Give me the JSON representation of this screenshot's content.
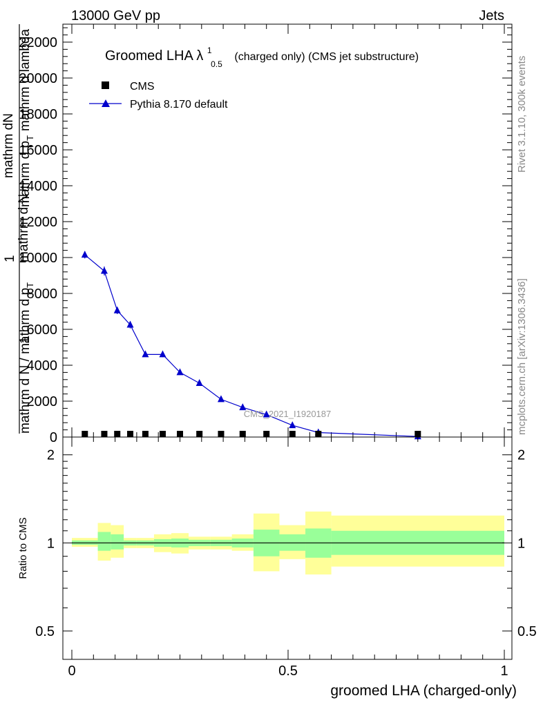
{
  "header": {
    "left": "13000 GeV pp",
    "right": "Jets"
  },
  "side_text": {
    "rivet": "Rivet 3.1.10,  300k events",
    "mcplots": "mcplots.cern.ch [arXiv:1306.3436]"
  },
  "chart_data": [
    {
      "type": "line",
      "panel": "main",
      "title_main": "Groomed LHA ",
      "title_lambda": "λ",
      "title_sup": "1",
      "title_sub": "0.5",
      "title_rest": "(charged only) (CMS jet substructure)",
      "ylabel_top": "mathrm dN",
      "ylabel_top2": "mathrm d p",
      "ylabel_top3": "T",
      "ylabel_top4": "mathrm d lambda",
      "ylabel_bottom_one": "1",
      "ylabel_bottom": "mathrm d N / mathrm d p",
      "ylabel_bottom2": "T",
      "ylabel_left": "mathrm d N",
      "ylabel_left_one": "1",
      "watermark": "CMS_2021_I1920187",
      "ylim": [
        0,
        23000
      ],
      "xlim": [
        -0.025,
        1.0
      ],
      "y_ticks": [
        {
          "value": 0,
          "label": "0"
        },
        {
          "value": 2000,
          "label": "2000"
        },
        {
          "value": 4000,
          "label": "4000"
        },
        {
          "value": 6000,
          "label": "6000"
        },
        {
          "value": 8000,
          "label": "8000"
        },
        {
          "value": 10000,
          "label": "10000"
        },
        {
          "value": 12000,
          "label": "12000"
        },
        {
          "value": 14000,
          "label": "14000"
        },
        {
          "value": 16000,
          "label": "16000"
        },
        {
          "value": 18000,
          "label": "18000"
        },
        {
          "value": 20000,
          "label": "20000"
        },
        {
          "value": 22000,
          "label": "22000"
        }
      ],
      "legend_position": "top-left",
      "series": [
        {
          "name": "CMS",
          "color": "#000000",
          "marker": "square",
          "x": [
            0.03,
            0.075,
            0.105,
            0.135,
            0.17,
            0.21,
            0.25,
            0.295,
            0.345,
            0.395,
            0.45,
            0.51,
            0.57,
            0.8
          ],
          "y": [
            60,
            60,
            60,
            60,
            60,
            60,
            60,
            60,
            60,
            60,
            60,
            60,
            60,
            60
          ]
        },
        {
          "name": "Pythia 8.170 default",
          "color": "#0000cc",
          "marker": "triangle",
          "x": [
            0.03,
            0.075,
            0.105,
            0.135,
            0.17,
            0.21,
            0.25,
            0.295,
            0.345,
            0.395,
            0.45,
            0.51,
            0.57,
            0.8
          ],
          "y": [
            10150,
            9250,
            7050,
            6250,
            4600,
            4600,
            3600,
            3000,
            2100,
            1650,
            1250,
            650,
            250,
            30
          ],
          "yerr": [
            200,
            250,
            200,
            200,
            120,
            150,
            100,
            80,
            60,
            50,
            40,
            30,
            20,
            10
          ]
        }
      ]
    },
    {
      "type": "area",
      "panel": "ratio",
      "ylabel": "Ratio to CMS",
      "xlabel": "groomed LHA (charged-only)",
      "ylim": [
        0.4,
        2.3
      ],
      "log_y": true,
      "y_ticks": [
        {
          "value": 0.5,
          "label": "0.5"
        },
        {
          "value": 1,
          "label": "1"
        },
        {
          "value": 2,
          "label": "2"
        }
      ],
      "x_ticks": [
        {
          "value": 0,
          "label": "0"
        },
        {
          "value": 0.5,
          "label": "0.5"
        },
        {
          "value": 1,
          "label": "1"
        }
      ],
      "reference": 1,
      "band_colors": {
        "inner": "#99ff99",
        "outer": "#ffff99"
      },
      "bins": [
        {
          "x0": 0.0,
          "x1": 0.06,
          "inner": [
            0.985,
            1.02
          ],
          "outer": [
            0.97,
            1.04
          ]
        },
        {
          "x0": 0.06,
          "x1": 0.09,
          "inner": [
            0.94,
            1.09
          ],
          "outer": [
            0.87,
            1.17
          ]
        },
        {
          "x0": 0.09,
          "x1": 0.12,
          "inner": [
            0.95,
            1.07
          ],
          "outer": [
            0.89,
            1.15
          ]
        },
        {
          "x0": 0.12,
          "x1": 0.15,
          "inner": [
            0.98,
            1.02
          ],
          "outer": [
            0.96,
            1.04
          ]
        },
        {
          "x0": 0.15,
          "x1": 0.19,
          "inner": [
            0.98,
            1.02
          ],
          "outer": [
            0.96,
            1.04
          ]
        },
        {
          "x0": 0.19,
          "x1": 0.23,
          "inner": [
            0.97,
            1.03
          ],
          "outer": [
            0.93,
            1.07
          ]
        },
        {
          "x0": 0.23,
          "x1": 0.27,
          "inner": [
            0.965,
            1.035
          ],
          "outer": [
            0.92,
            1.08
          ]
        },
        {
          "x0": 0.27,
          "x1": 0.32,
          "inner": [
            0.975,
            1.025
          ],
          "outer": [
            0.95,
            1.05
          ]
        },
        {
          "x0": 0.32,
          "x1": 0.37,
          "inner": [
            0.975,
            1.025
          ],
          "outer": [
            0.95,
            1.05
          ]
        },
        {
          "x0": 0.37,
          "x1": 0.42,
          "inner": [
            0.965,
            1.035
          ],
          "outer": [
            0.94,
            1.07
          ]
        },
        {
          "x0": 0.42,
          "x1": 0.48,
          "inner": [
            0.9,
            1.11
          ],
          "outer": [
            0.8,
            1.26
          ]
        },
        {
          "x0": 0.48,
          "x1": 0.54,
          "inner": [
            0.94,
            1.07
          ],
          "outer": [
            0.88,
            1.15
          ]
        },
        {
          "x0": 0.54,
          "x1": 0.6,
          "inner": [
            0.89,
            1.12
          ],
          "outer": [
            0.78,
            1.28
          ]
        },
        {
          "x0": 0.6,
          "x1": 1.0,
          "inner": [
            0.91,
            1.1
          ],
          "outer": [
            0.83,
            1.24
          ]
        }
      ],
      "series": [
        {
          "name": "Pythia 8.170 default",
          "color": "#0000cc",
          "x": [
            0.03,
            0.075,
            0.105,
            0.135,
            0.17,
            0.21,
            0.25,
            0.295,
            0.345,
            0.395,
            0.45,
            0.51,
            0.57,
            0.8
          ],
          "y": [
            1,
            1,
            1,
            1,
            1,
            1,
            1,
            1,
            1,
            1,
            1,
            1,
            1,
            1
          ]
        }
      ]
    }
  ]
}
